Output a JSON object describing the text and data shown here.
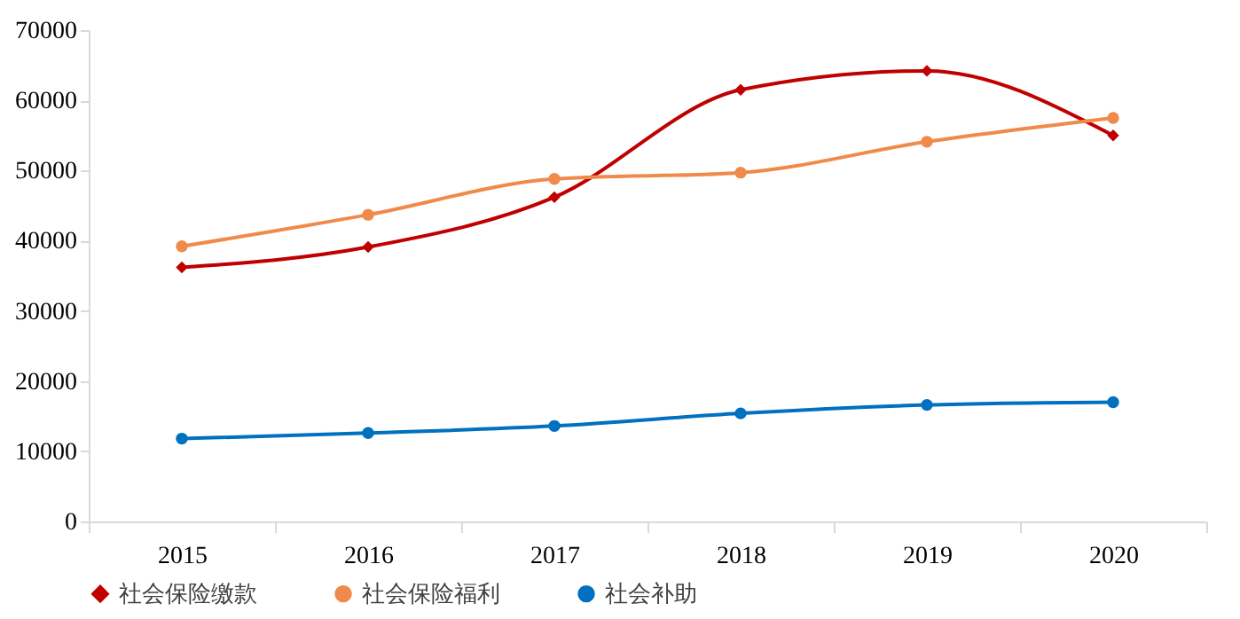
{
  "chart_data": {
    "type": "line",
    "categories": [
      "2015",
      "2016",
      "2017",
      "2018",
      "2019",
      "2020"
    ],
    "series": [
      {
        "name": "社会保险缴款",
        "color": "#c00000",
        "marker": "diamond",
        "values": [
          36200,
          39100,
          46200,
          61500,
          64200,
          55000
        ]
      },
      {
        "name": "社会保险福利",
        "color": "#f08a4b",
        "marker": "circle",
        "values": [
          39200,
          43700,
          48800,
          49700,
          54100,
          57500
        ]
      },
      {
        "name": "社会补助",
        "color": "#0070c0",
        "marker": "circle",
        "values": [
          11800,
          12600,
          13600,
          15400,
          16600,
          17000
        ]
      }
    ],
    "ylim": [
      0,
      70000
    ],
    "yticks": [
      0,
      10000,
      20000,
      30000,
      40000,
      50000,
      60000,
      70000
    ],
    "grid": false,
    "legend": "bottom"
  }
}
